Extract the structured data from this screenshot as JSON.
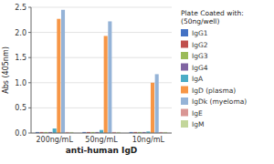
{
  "chart_data": {
    "type": "bar",
    "xlabel": "anti-human IgD",
    "ylabel": "Abs (405nm)",
    "categories": [
      "200ng/mL",
      "50ng/mL",
      "10ng/mL"
    ],
    "series": [
      {
        "name": "IgG1",
        "color": "#4472C4",
        "values": [
          0.02,
          0.02,
          0.02
        ]
      },
      {
        "name": "IgG2",
        "color": "#C0504D",
        "values": [
          0.02,
          0.02,
          0.02
        ]
      },
      {
        "name": "IgG3",
        "color": "#9BBB59",
        "values": [
          0.02,
          0.02,
          0.02
        ]
      },
      {
        "name": "IgG4",
        "color": "#8064A2",
        "values": [
          0.02,
          0.02,
          0.02
        ]
      },
      {
        "name": "IgA",
        "color": "#4BACC6",
        "values": [
          0.09,
          0.06,
          0.03
        ]
      },
      {
        "name": "IgD (plasma)",
        "color": "#F79646",
        "values": [
          2.27,
          1.93,
          1.0
        ]
      },
      {
        "name": "IgDk (myeloma)",
        "color": "#95B3D7",
        "values": [
          2.45,
          2.22,
          1.17
        ]
      },
      {
        "name": "IgE",
        "color": "#D99694",
        "values": [
          0.02,
          0.02,
          0.02
        ]
      },
      {
        "name": "IgM",
        "color": "#C3D69B",
        "values": [
          0.02,
          0.02,
          0.02
        ]
      }
    ],
    "ylim": [
      0,
      2.5
    ],
    "yticks": [
      {
        "value": 0,
        "label": "0.0"
      },
      0.5,
      {
        "value": 1,
        "label": "1.0"
      },
      1.5,
      {
        "value": 2,
        "label": "2.0"
      },
      2.5
    ],
    "grid": true,
    "legend": "right",
    "legend_title": "Plate Coated with:\n(50ng/well)"
  }
}
